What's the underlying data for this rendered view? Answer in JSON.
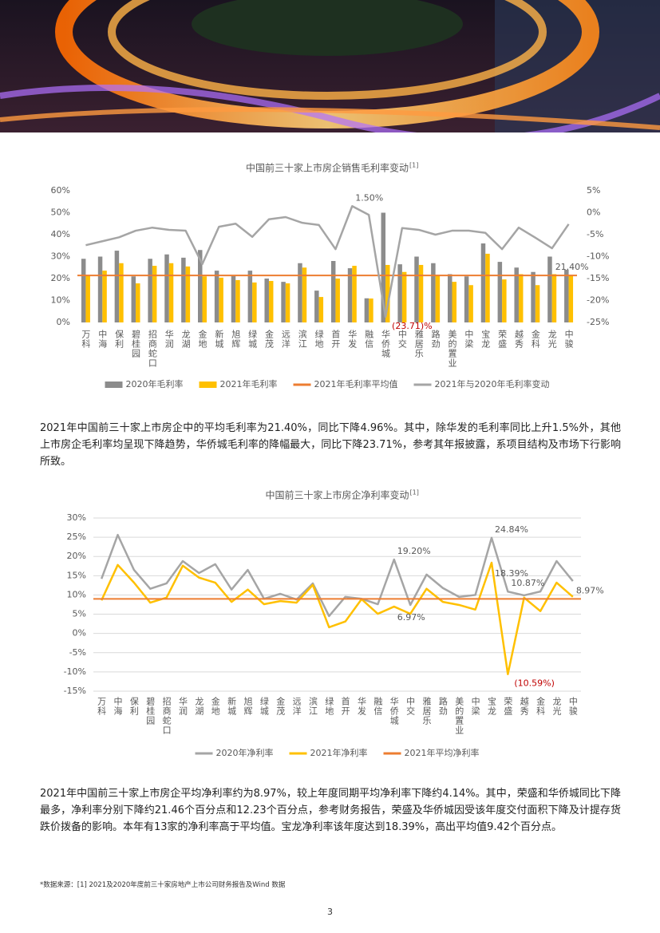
{
  "chart_data": [
    {
      "type": "bar",
      "title": "中国前三十家上市房企销售毛利率变动",
      "title_note": "[1]",
      "categories": [
        "万科",
        "中海",
        "保利",
        "碧桂园",
        "招商蛇口",
        "华润",
        "龙湖",
        "金地",
        "新城",
        "旭辉",
        "绿城",
        "金茂",
        "远洋",
        "滨江",
        "绿地",
        "首开",
        "华发",
        "融信",
        "华侨城",
        "中交",
        "雅居乐",
        "路劲",
        "美的置业",
        "中梁",
        "宝龙",
        "荣盛",
        "越秀",
        "金科",
        "龙光",
        "中骏"
      ],
      "series": [
        {
          "name": "2020年毛利率",
          "type": "bar",
          "color": "#8c8c8c",
          "values": [
            29,
            30,
            32.7,
            21,
            29,
            31,
            29.5,
            33,
            23.6,
            21.5,
            23.6,
            20,
            18.5,
            27,
            14.5,
            28,
            24.7,
            11,
            50,
            26.5,
            30,
            27,
            22,
            21,
            36,
            27.6,
            25,
            23,
            30,
            24
          ]
        },
        {
          "name": "2021年毛利率",
          "type": "bar",
          "color": "#ffc000",
          "values": [
            21.5,
            23.6,
            27,
            17.8,
            25.8,
            27,
            25.5,
            21,
            20.4,
            19.3,
            18.2,
            18.9,
            17.8,
            25,
            11.6,
            20,
            25.8,
            10.9,
            26.2,
            23,
            26.2,
            21.5,
            18.5,
            17,
            31.3,
            19.6,
            22,
            17,
            22,
            21.5
          ]
        },
        {
          "name": "2021年毛利率平均值",
          "type": "line",
          "color": "#ed7d31",
          "values": [
            21.4,
            21.4,
            21.4,
            21.4,
            21.4,
            21.4,
            21.4,
            21.4,
            21.4,
            21.4,
            21.4,
            21.4,
            21.4,
            21.4,
            21.4,
            21.4,
            21.4,
            21.4,
            21.4,
            21.4,
            21.4,
            21.4,
            21.4,
            21.4,
            21.4,
            21.4,
            21.4,
            21.4,
            21.4,
            21.4
          ],
          "value_labels": [
            null,
            null,
            null,
            null,
            null,
            null,
            null,
            null,
            null,
            null,
            null,
            null,
            null,
            null,
            null,
            null,
            null,
            null,
            null,
            null,
            null,
            null,
            null,
            null,
            null,
            null,
            null,
            null,
            "21.40%",
            null
          ]
        },
        {
          "name": "2021年与2020年毛利率变动",
          "type": "line",
          "axis": "y2",
          "color": "#a5a5a5",
          "values": [
            -7.4,
            -6.5,
            -5.6,
            -4.1,
            -3.4,
            -3.9,
            -4.1,
            -11.7,
            -3.2,
            -2.5,
            -5.5,
            -1.5,
            -1,
            -2.3,
            -2.8,
            -8.3,
            1.5,
            -0.5,
            -23.71,
            -3.5,
            -3.9,
            -5,
            -4.1,
            -4.1,
            -4.6,
            -8.3,
            -3.4,
            -5.7,
            -8.1,
            -2.6
          ],
          "value_labels": [
            null,
            null,
            null,
            null,
            null,
            null,
            null,
            null,
            null,
            null,
            null,
            null,
            null,
            null,
            null,
            null,
            "1.50%",
            null,
            "(23.71)%",
            null,
            null,
            null,
            null,
            null,
            null,
            null,
            null,
            null,
            null,
            null
          ]
        }
      ],
      "ylim": [
        0,
        60
      ],
      "yticks": [
        {
          "value": 0,
          "label": "0%"
        },
        {
          "value": 10,
          "label": "10%"
        },
        {
          "value": 20,
          "label": "20%"
        },
        {
          "value": 30,
          "label": "30%"
        },
        {
          "value": 40,
          "label": "40%"
        },
        {
          "value": 50,
          "label": "50%"
        },
        {
          "value": 60,
          "label": "60%"
        }
      ],
      "y2lim": [
        -25,
        5
      ],
      "y2ticks": [
        {
          "value": 5,
          "label": "5%"
        },
        {
          "value": 0,
          "label": "0%"
        },
        {
          "value": -5,
          "label": "-5%"
        },
        {
          "value": -10,
          "label": "-10%"
        },
        {
          "value": -15,
          "label": "-15%"
        },
        {
          "value": -20,
          "label": "-20%"
        },
        {
          "value": -25,
          "label": "-25%"
        }
      ],
      "grid": false,
      "legend": "bottom"
    },
    {
      "type": "line",
      "title": "中国前三十家上市房企净利率变动",
      "title_note": "[1]",
      "categories": [
        "万科",
        "中海",
        "保利",
        "碧桂园",
        "招商蛇口",
        "华润",
        "龙湖",
        "金地",
        "新城",
        "旭辉",
        "绿城",
        "金茂",
        "远洋",
        "滨江",
        "绿地",
        "首开",
        "华发",
        "融信",
        "华侨城",
        "中交",
        "雅居乐",
        "路劲",
        "美的置业",
        "中梁",
        "宝龙",
        "荣盛",
        "越秀",
        "金科",
        "龙光",
        "中骏"
      ],
      "series": [
        {
          "name": "2020年净利率",
          "color": "#a5a5a5",
          "values": [
            14.2,
            25.6,
            16.5,
            11.6,
            13,
            18.8,
            15.7,
            18,
            11.4,
            16.5,
            9,
            10.3,
            8.8,
            13,
            4.5,
            9.5,
            9,
            7.6,
            19.2,
            7.4,
            15.3,
            11.8,
            9.5,
            10,
            24.84,
            10.87,
            9.9,
            10.9,
            18.8,
            13.6
          ],
          "value_labels": [
            null,
            null,
            null,
            null,
            null,
            null,
            null,
            null,
            null,
            null,
            null,
            null,
            null,
            null,
            null,
            null,
            null,
            null,
            "19.20%",
            null,
            null,
            null,
            null,
            null,
            "24.84%",
            "10.87%",
            null,
            null,
            null,
            null
          ]
        },
        {
          "name": "2021年净利率",
          "color": "#ffc000",
          "values": [
            8.6,
            17.8,
            13.2,
            8,
            9.3,
            17.6,
            14.5,
            13.2,
            8.2,
            11.4,
            7.6,
            8.4,
            8,
            12.6,
            1.6,
            3.1,
            8.9,
            5.1,
            6.97,
            5.1,
            11.6,
            8.2,
            7.4,
            6.2,
            18.39,
            -10.59,
            9.3,
            5.8,
            13.2,
            9.5
          ],
          "value_labels": [
            null,
            null,
            null,
            null,
            null,
            null,
            null,
            null,
            null,
            null,
            null,
            null,
            null,
            null,
            null,
            null,
            null,
            null,
            "6.97%",
            null,
            null,
            null,
            null,
            null,
            "18.39%",
            "(10.59%)",
            null,
            null,
            null,
            null
          ]
        },
        {
          "name": "2021年平均净利率",
          "color": "#ed7d31",
          "values": [
            8.97,
            8.97,
            8.97,
            8.97,
            8.97,
            8.97,
            8.97,
            8.97,
            8.97,
            8.97,
            8.97,
            8.97,
            8.97,
            8.97,
            8.97,
            8.97,
            8.97,
            8.97,
            8.97,
            8.97,
            8.97,
            8.97,
            8.97,
            8.97,
            8.97,
            8.97,
            8.97,
            8.97,
            8.97,
            8.97
          ],
          "value_labels": [
            null,
            null,
            null,
            null,
            null,
            null,
            null,
            null,
            null,
            null,
            null,
            null,
            null,
            null,
            null,
            null,
            null,
            null,
            null,
            null,
            null,
            null,
            null,
            null,
            null,
            null,
            null,
            null,
            null,
            "8.97%"
          ]
        }
      ],
      "ylim": [
        -15,
        30
      ],
      "yticks": [
        {
          "value": 30,
          "label": "30%"
        },
        {
          "value": 25,
          "label": "25%"
        },
        {
          "value": 20,
          "label": "20%"
        },
        {
          "value": 15,
          "label": "15%"
        },
        {
          "value": 10,
          "label": "10%"
        },
        {
          "value": 5,
          "label": "5%"
        },
        {
          "value": 0,
          "label": "0%"
        },
        {
          "value": -5,
          "label": "-5%"
        },
        {
          "value": -10,
          "label": "-10%"
        },
        {
          "value": -15,
          "label": "-15%"
        }
      ],
      "grid": true,
      "legend": "bottom"
    }
  ],
  "paragraphs": [
    "2021年中国前三十家上市房企中的平均毛利率为21.40%，同比下降4.96%。其中，除华发的毛利率同比上升1.5%外，其他上市房企毛利率均呈现下降趋势，华侨城毛利率的降幅最大，同比下降23.71%，参考其年报披露，系项目结构及市场下行影响所致。",
    "2021年中国前三十家上市房企平均净利率约为8.97%，较上年度同期平均净利率下降约4.14%。其中，荣盛和华侨城同比下降最多，净利率分别下降约21.46个百分点和12.23个百分点，参考财务报告，荣盛及华侨城因受该年度交付面积下降及计提存货跌价拨备的影响。本年有13家的净利率高于平均值。宝龙净利率该年度达到18.39%，高出平均值9.42个百分点。"
  ],
  "footnote": "*数据来源：[1] 2021及2020年度前三十家房地产上市公司财务报告及Wind 数据",
  "page_number": "3"
}
